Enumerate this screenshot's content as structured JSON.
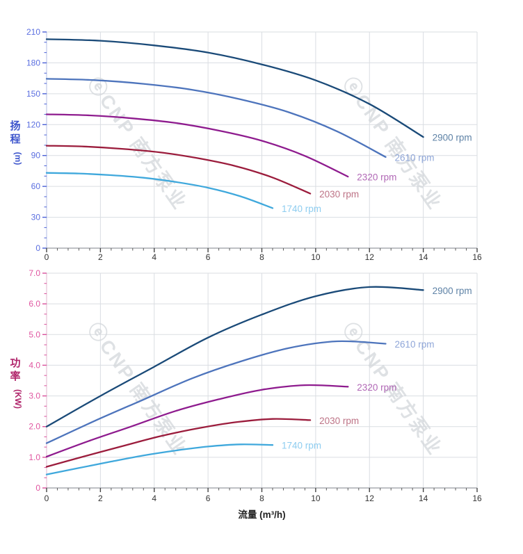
{
  "watermark": {
    "text": "ⓔCNP 南方泵业",
    "color": "#d3d7db"
  },
  "chart_data": [
    {
      "id": "head-curve",
      "type": "line",
      "title": "",
      "xlabel": "",
      "ylabel": "扬程 (m)",
      "ylabel_chars": [
        "扬",
        "程"
      ],
      "ylabel_unit": "(m)",
      "xlim": [
        0,
        16
      ],
      "ylim": [
        0,
        210
      ],
      "x_major_step": 2,
      "x_minor_step": 0.4,
      "y_major_step": 30,
      "y_minor_step": 10,
      "x_ticks": [
        "0",
        "2",
        "4",
        "6",
        "8",
        "10",
        "12",
        "14",
        "16"
      ],
      "y_ticks": [
        "0",
        "30",
        "60",
        "90",
        "120",
        "150",
        "180",
        "210"
      ],
      "y_decimals": 0,
      "grid": true,
      "legend_position": "curve-end-labels",
      "axis_title_color": "#3d55cc",
      "tick_label_color": "#5a6ee0",
      "tick_color": "#4a5fd6",
      "spine_color": "#b2bce4",
      "series": [
        {
          "name": "2900 rpm",
          "color": "#1a4a78",
          "label_color": "#5e82a6",
          "points": [
            [
              0,
              203
            ],
            [
              2,
              201.5
            ],
            [
              4,
              197
            ],
            [
              6,
              190
            ],
            [
              8,
              178.5
            ],
            [
              10,
              163
            ],
            [
              12,
              140
            ],
            [
              14,
              108
            ]
          ]
        },
        {
          "name": "2610 rpm",
          "color": "#4d74bc",
          "label_color": "#8fa6d8",
          "points": [
            [
              0,
              164.5
            ],
            [
              1.8,
              163.2
            ],
            [
              3.6,
              159.6
            ],
            [
              5.4,
              153.9
            ],
            [
              7.2,
              144.6
            ],
            [
              9,
              132
            ],
            [
              10.8,
              113.4
            ],
            [
              12.6,
              88.5
            ]
          ]
        },
        {
          "name": "2320 rpm",
          "color": "#8e1b8e",
          "label_color": "#b168b6",
          "points": [
            [
              0,
              130
            ],
            [
              1.6,
              129
            ],
            [
              3.2,
              126.1
            ],
            [
              4.8,
              121.6
            ],
            [
              6.4,
              114.2
            ],
            [
              8,
              104.3
            ],
            [
              9.6,
              89.6
            ],
            [
              11.2,
              69.5
            ]
          ]
        },
        {
          "name": "2030 rpm",
          "color": "#9b1c3c",
          "label_color": "#bd7386",
          "points": [
            [
              0,
              99.5
            ],
            [
              1.4,
              98.7
            ],
            [
              2.8,
              96.5
            ],
            [
              4.2,
              93.1
            ],
            [
              5.6,
              87.5
            ],
            [
              7,
              79.9
            ],
            [
              8.4,
              68.6
            ],
            [
              9.8,
              53
            ]
          ]
        },
        {
          "name": "1740 rpm",
          "color": "#3fa8dc",
          "label_color": "#8ecdf0",
          "points": [
            [
              0,
              73.1
            ],
            [
              1.2,
              72.5
            ],
            [
              2.4,
              70.9
            ],
            [
              3.6,
              68.4
            ],
            [
              4.8,
              64.3
            ],
            [
              6,
              58.7
            ],
            [
              7.2,
              50.4
            ],
            [
              8.4,
              38.9
            ]
          ]
        }
      ]
    },
    {
      "id": "power-curve",
      "type": "line",
      "title": "",
      "xlabel": "流量 (m³/h)",
      "ylabel": "功率 (KW)",
      "ylabel_chars": [
        "功",
        "率"
      ],
      "ylabel_unit": "(KW)",
      "xlim": [
        0,
        16
      ],
      "ylim": [
        0,
        7
      ],
      "x_major_step": 2,
      "x_minor_step": 0.4,
      "y_major_step": 1,
      "y_minor_step": 0.3333,
      "x_ticks": [
        "0",
        "2",
        "4",
        "6",
        "8",
        "10",
        "12",
        "14",
        "16"
      ],
      "y_ticks": [
        "0",
        "1.0",
        "2.0",
        "3.0",
        "4.0",
        "5.0",
        "6.0",
        "7.0"
      ],
      "y_decimals": 1,
      "grid": true,
      "legend_position": "curve-end-labels",
      "axis_title_color": "#b0256b",
      "tick_label_color": "#e055a0",
      "tick_color": "#d94f9b",
      "spine_color": "#e0b6ce",
      "series": [
        {
          "name": "2900 rpm",
          "color": "#1a4a78",
          "label_color": "#5e82a6",
          "points": [
            [
              0,
              2.0
            ],
            [
              2,
              3.0
            ],
            [
              4,
              3.95
            ],
            [
              6,
              4.9
            ],
            [
              8,
              5.65
            ],
            [
              10,
              6.25
            ],
            [
              12,
              6.55
            ],
            [
              14,
              6.45
            ]
          ]
        },
        {
          "name": "2610 rpm",
          "color": "#4d74bc",
          "label_color": "#8fa6d8",
          "points": [
            [
              0,
              1.46
            ],
            [
              1.8,
              2.19
            ],
            [
              3.6,
              2.88
            ],
            [
              5.4,
              3.57
            ],
            [
              7.2,
              4.12
            ],
            [
              9,
              4.56
            ],
            [
              10.8,
              4.78
            ],
            [
              12.6,
              4.7
            ]
          ]
        },
        {
          "name": "2320 rpm",
          "color": "#8e1b8e",
          "label_color": "#b168b6",
          "points": [
            [
              0,
              1.02
            ],
            [
              1.6,
              1.54
            ],
            [
              3.2,
              2.02
            ],
            [
              4.8,
              2.51
            ],
            [
              6.4,
              2.89
            ],
            [
              8,
              3.2
            ],
            [
              9.6,
              3.35
            ],
            [
              11.2,
              3.3
            ]
          ]
        },
        {
          "name": "2030 rpm",
          "color": "#9b1c3c",
          "label_color": "#bd7386",
          "points": [
            [
              0,
              0.69
            ],
            [
              1.4,
              1.03
            ],
            [
              2.8,
              1.36
            ],
            [
              4.2,
              1.68
            ],
            [
              5.6,
              1.94
            ],
            [
              7,
              2.14
            ],
            [
              8.4,
              2.25
            ],
            [
              9.8,
              2.21
            ]
          ]
        },
        {
          "name": "1740 rpm",
          "color": "#3fa8dc",
          "label_color": "#8ecdf0",
          "points": [
            [
              0,
              0.44
            ],
            [
              1.2,
              0.65
            ],
            [
              2.4,
              0.86
            ],
            [
              3.6,
              1.06
            ],
            [
              4.8,
              1.22
            ],
            [
              6,
              1.35
            ],
            [
              7.2,
              1.42
            ],
            [
              8.4,
              1.4
            ]
          ]
        }
      ]
    }
  ],
  "x_axis_title": "流量 (m³/h)",
  "grid_color": "#dadde2",
  "x_spine_color": "#7d828a",
  "x_tick_color": "#444444",
  "x_tick_label_color": "#333333"
}
